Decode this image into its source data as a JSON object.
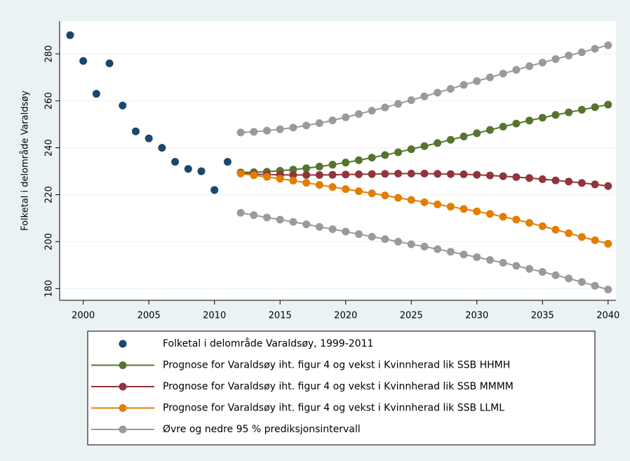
{
  "chart_data": {
    "type": "line",
    "ylabel": "Folketal i delområde Varaldsøy",
    "xlim": [
      1998.2,
      2040.6
    ],
    "xticks": [
      2000,
      2005,
      2010,
      2015,
      2020,
      2025,
      2030,
      2035,
      2040
    ],
    "ylim": [
      175,
      294
    ],
    "yticks": [
      180,
      200,
      220,
      240,
      260,
      280
    ],
    "grid": true,
    "series": [
      {
        "name": "Folketal i delområde Varaldsøy, 1999-2011",
        "color": "#1a476f",
        "lines": false,
        "x": [
          1999,
          2000,
          2001,
          2002,
          2003,
          2004,
          2005,
          2006,
          2007,
          2008,
          2009,
          2010,
          2011
        ],
        "values": [
          288,
          277,
          263,
          276,
          258,
          247,
          244,
          240,
          234,
          231,
          230,
          222,
          234
        ]
      },
      {
        "name": "Prognose for Varaldsøy iht. figur 4 og vekst i Kvinnherad lik SSB HHMH",
        "color": "#55752f",
        "lines": true,
        "x": [
          2012,
          2013,
          2014,
          2015,
          2016,
          2017,
          2018,
          2019,
          2020,
          2021,
          2022,
          2023,
          2024,
          2025,
          2026,
          2027,
          2028,
          2029,
          2030,
          2031,
          2032,
          2033,
          2034,
          2035,
          2036,
          2037,
          2038,
          2039,
          2040
        ],
        "values": [
          229.5,
          229.6,
          229.8,
          230.2,
          230.7,
          231.3,
          232.0,
          232.8,
          233.7,
          234.7,
          235.8,
          236.9,
          238.1,
          239.4,
          240.7,
          242.0,
          243.4,
          244.8,
          246.2,
          247.6,
          249.0,
          250.3,
          251.6,
          252.8,
          254.0,
          255.1,
          256.2,
          257.3,
          258.4
        ]
      },
      {
        "name": "Prognose for Varaldsøy iht. figur 4 og vekst i Kvinnherad lik SSB MMMM",
        "color": "#90353b",
        "lines": true,
        "x": [
          2012,
          2013,
          2014,
          2015,
          2016,
          2017,
          2018,
          2019,
          2020,
          2021,
          2022,
          2023,
          2024,
          2025,
          2026,
          2027,
          2028,
          2029,
          2030,
          2031,
          2032,
          2033,
          2034,
          2035,
          2036,
          2037,
          2038,
          2039,
          2040
        ],
        "values": [
          229.2,
          228.8,
          228.6,
          228.5,
          228.4,
          228.4,
          228.4,
          228.5,
          228.6,
          228.7,
          228.8,
          228.9,
          229.0,
          229.0,
          229.0,
          228.9,
          228.8,
          228.7,
          228.5,
          228.2,
          227.9,
          227.5,
          227.1,
          226.6,
          226.1,
          225.6,
          225.0,
          224.4,
          223.7
        ]
      },
      {
        "name": "Prognose for Varaldsøy iht. figur 4 og vekst i Kvinnherad lik SSB LLML",
        "color": "#e37e00",
        "lines": true,
        "x": [
          2012,
          2013,
          2014,
          2015,
          2016,
          2017,
          2018,
          2019,
          2020,
          2021,
          2022,
          2023,
          2024,
          2025,
          2026,
          2027,
          2028,
          2029,
          2030,
          2031,
          2032,
          2033,
          2034,
          2035,
          2036,
          2037,
          2038,
          2039,
          2040
        ],
        "values": [
          229.0,
          228.3,
          227.6,
          226.8,
          226.0,
          225.1,
          224.2,
          223.3,
          222.4,
          221.5,
          220.6,
          219.7,
          218.7,
          217.8,
          216.8,
          215.9,
          214.9,
          213.9,
          212.9,
          211.8,
          210.6,
          209.4,
          208.0,
          206.6,
          205.1,
          203.6,
          202.0,
          200.6,
          199.1
        ]
      },
      {
        "name": "Øvre og nedre 95 % prediksjonsintervall",
        "color": "#9a9a9a",
        "lines": true,
        "x": [
          2012,
          2013,
          2014,
          2015,
          2016,
          2017,
          2018,
          2019,
          2020,
          2021,
          2022,
          2023,
          2024,
          2025,
          2026,
          2027,
          2028,
          2029,
          2030,
          2031,
          2032,
          2033,
          2034,
          2035,
          2036,
          2037,
          2038,
          2039,
          2040
        ],
        "values": [
          246.5,
          246.8,
          247.3,
          247.9,
          248.6,
          249.5,
          250.5,
          251.7,
          253.0,
          254.4,
          255.8,
          257.2,
          258.7,
          260.3,
          261.9,
          263.5,
          265.1,
          266.8,
          268.4,
          270.0,
          271.6,
          273.2,
          274.8,
          276.3,
          277.8,
          279.3,
          280.7,
          282.2,
          283.7
        ]
      },
      {
        "color": "#9a9a9a",
        "lines": true,
        "x": [
          2012,
          2013,
          2014,
          2015,
          2016,
          2017,
          2018,
          2019,
          2020,
          2021,
          2022,
          2023,
          2024,
          2025,
          2026,
          2027,
          2028,
          2029,
          2030,
          2031,
          2032,
          2033,
          2034,
          2035,
          2036,
          2037,
          2038,
          2039,
          2040
        ],
        "values": [
          212.3,
          211.3,
          210.3,
          209.4,
          208.4,
          207.4,
          206.3,
          205.3,
          204.3,
          203.2,
          202.1,
          201.1,
          200.0,
          198.9,
          197.9,
          196.8,
          195.7,
          194.5,
          193.4,
          192.2,
          191.0,
          189.7,
          188.4,
          187.1,
          185.7,
          184.3,
          182.8,
          181.2,
          179.6
        ]
      }
    ]
  }
}
